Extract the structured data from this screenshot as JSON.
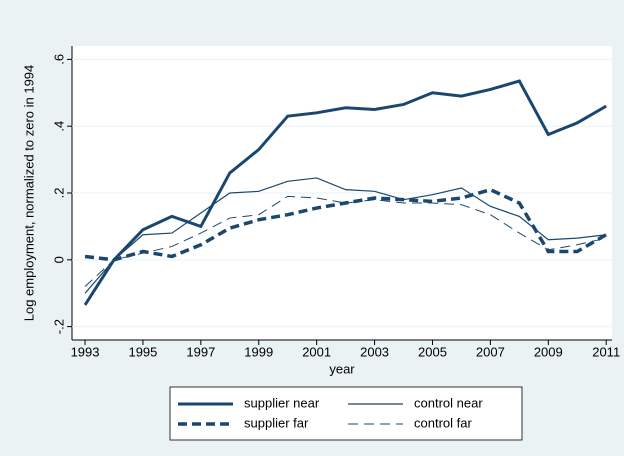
{
  "chart_data": {
    "type": "line",
    "x_label": "year",
    "y_label": "Log employment, normalized to zero in 1994",
    "x": [
      1993,
      1994,
      1995,
      1996,
      1997,
      1998,
      1999,
      2000,
      2001,
      2002,
      2003,
      2004,
      2005,
      2006,
      2007,
      2008,
      2009,
      2010,
      2011
    ],
    "series": [
      {
        "name": "supplier near",
        "color": "#1a476f",
        "width": 3,
        "style": "solid",
        "values": [
          -0.135,
          0,
          0.09,
          0.13,
          0.1,
          0.26,
          0.33,
          0.43,
          0.44,
          0.455,
          0.45,
          0.465,
          0.5,
          0.49,
          0.51,
          0.535,
          0.375,
          0.41,
          0.46
        ]
      },
      {
        "name": "control near",
        "color": "#1a476f",
        "width": 1.2,
        "style": "solid",
        "values": [
          -0.1,
          0,
          0.075,
          0.08,
          0.14,
          0.2,
          0.205,
          0.235,
          0.245,
          0.21,
          0.205,
          0.18,
          0.195,
          0.215,
          0.16,
          0.13,
          0.06,
          0.065,
          0.075
        ]
      },
      {
        "name": "supplier far",
        "color": "#1a476f",
        "width": 3.5,
        "style": "dashed",
        "values": [
          0.01,
          0,
          0.025,
          0.01,
          0.045,
          0.095,
          0.12,
          0.135,
          0.155,
          0.17,
          0.185,
          0.18,
          0.175,
          0.185,
          0.21,
          0.17,
          0.025,
          0.025,
          0.075
        ]
      },
      {
        "name": "control far",
        "color": "#1a476f",
        "width": 1,
        "style": "dashed",
        "values": [
          -0.08,
          0,
          0.02,
          0.04,
          0.08,
          0.125,
          0.135,
          0.19,
          0.185,
          0.17,
          0.18,
          0.17,
          0.17,
          0.165,
          0.135,
          0.08,
          0.03,
          0.045,
          0.065
        ]
      }
    ],
    "xlim": [
      1992.55,
      2011.2
    ],
    "xticks": [
      1993,
      1995,
      1997,
      1999,
      2001,
      2003,
      2005,
      2007,
      2009,
      2011
    ],
    "ylim": [
      -0.24,
      0.64
    ],
    "yticks": [
      {
        "value": -0.2,
        "label": "-.2"
      },
      0,
      {
        "value": 0.2,
        "label": ".2"
      },
      {
        "value": 0.4,
        "label": ".4"
      },
      {
        "value": 0.6,
        "label": ".6"
      }
    ],
    "grid": true
  }
}
